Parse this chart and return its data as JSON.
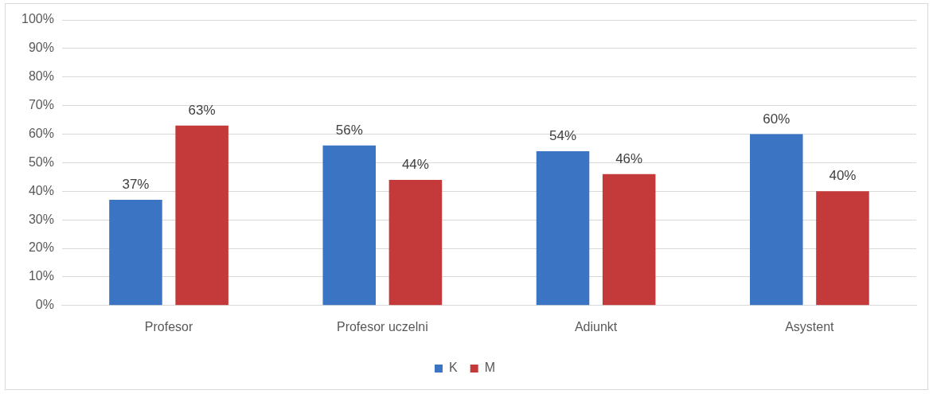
{
  "chart_data": {
    "type": "bar",
    "categories": [
      "Profesor",
      "Profesor uczelni",
      "Adiunkt",
      "Asystent"
    ],
    "series": [
      {
        "name": "K",
        "color": "#3b74c3",
        "values": [
          37,
          56,
          54,
          60
        ],
        "value_labels": [
          "37%",
          "56%",
          "54%",
          "60%"
        ]
      },
      {
        "name": "M",
        "color": "#c43a3a",
        "values": [
          63,
          44,
          46,
          40
        ],
        "value_labels": [
          "63%",
          "44%",
          "46%",
          "40%"
        ]
      }
    ],
    "ylim": [
      0,
      100
    ],
    "yticks": [
      {
        "value": 0,
        "label": "0%"
      },
      {
        "value": 10,
        "label": "10%"
      },
      {
        "value": 20,
        "label": "20%"
      },
      {
        "value": 30,
        "label": "30%"
      },
      {
        "value": 40,
        "label": "40%"
      },
      {
        "value": 50,
        "label": "50%"
      },
      {
        "value": 60,
        "label": "60%"
      },
      {
        "value": 70,
        "label": "70%"
      },
      {
        "value": 80,
        "label": "80%"
      },
      {
        "value": 90,
        "label": "90%"
      },
      {
        "value": 100,
        "label": "100%"
      }
    ],
    "grid": "y",
    "legend": "bottom"
  }
}
